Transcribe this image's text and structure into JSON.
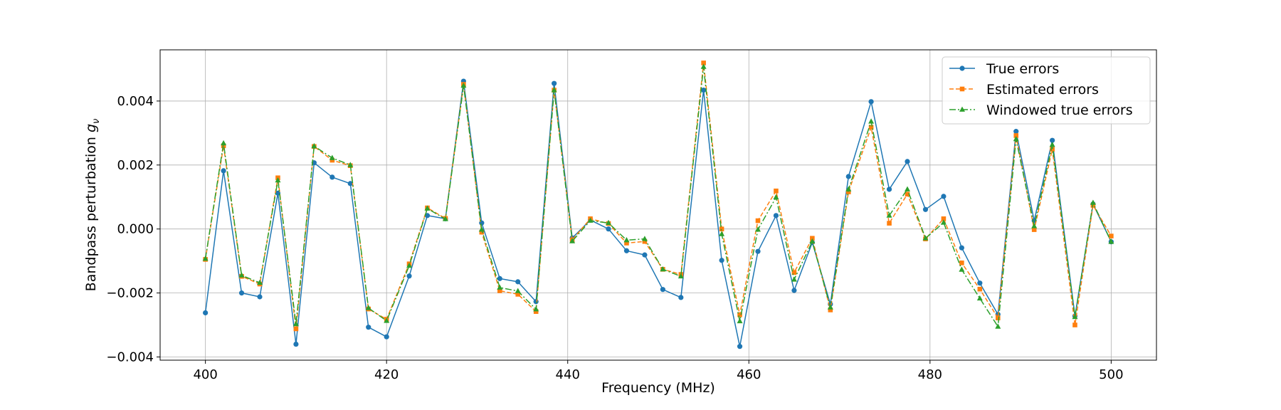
{
  "chart_data": {
    "type": "line",
    "title": "",
    "xlabel": "Frequency (MHz)",
    "ylabel_main": "Bandpass perturbation ",
    "ylabel_symbol": "g",
    "ylabel_sub": "ν",
    "xlim": [
      395,
      505
    ],
    "ylim": [
      -0.0041,
      0.0056
    ],
    "xticks": [
      400,
      420,
      440,
      460,
      480,
      500
    ],
    "yticks": [
      -0.004,
      -0.002,
      0.0,
      0.002,
      0.004
    ],
    "xtick_labels": [
      "400",
      "420",
      "440",
      "460",
      "480",
      "500"
    ],
    "ytick_labels": [
      "−0.004",
      "−0.002",
      "0.000",
      "0.002",
      "0.004"
    ],
    "grid": true,
    "legend_position": "upper right",
    "x": [
      400,
      402,
      404,
      406,
      408,
      410,
      412,
      414,
      416,
      418,
      420,
      422.5,
      424.5,
      426.5,
      428.5,
      430.5,
      432.5,
      434.5,
      436.5,
      438.5,
      440.5,
      442.5,
      444.5,
      446.5,
      448.5,
      450.5,
      452.5,
      455,
      457,
      459,
      461,
      463,
      465,
      467,
      469,
      471,
      473.5,
      475.5,
      477.5,
      479.5,
      481.5,
      483.5,
      485.5,
      487.5,
      489.5,
      491.5,
      493.5,
      496,
      498,
      500
    ],
    "series": [
      {
        "name": "True errors",
        "color": "#1f77b4",
        "linestyle": "solid",
        "marker": "circle",
        "values": [
          -0.00262,
          0.00182,
          -0.002,
          -0.00212,
          0.00112,
          -0.0036,
          0.00207,
          0.00162,
          0.00142,
          -0.00307,
          -0.00337,
          -0.00147,
          0.00042,
          0.00032,
          0.00462,
          0.00019,
          -0.00155,
          -0.00165,
          -0.00227,
          0.00455,
          -0.00028,
          0.00028,
          0.0,
          -0.00068,
          -0.00081,
          -0.00189,
          -0.00214,
          0.00434,
          -0.00098,
          -0.00367,
          -0.0007,
          0.00042,
          -0.00192,
          -0.00042,
          -0.00235,
          0.00164,
          0.00398,
          0.00124,
          0.00211,
          0.00061,
          0.00102,
          -0.00059,
          -0.00169,
          -0.00267,
          0.00305,
          0.00026,
          0.00277,
          -0.00272,
          0.00078,
          -0.0004
        ]
      },
      {
        "name": "Estimated errors",
        "color": "#ff7f0e",
        "linestyle": "dashed",
        "marker": "square",
        "values": [
          -0.00095,
          0.0026,
          -0.00148,
          -0.00172,
          0.0016,
          -0.00312,
          0.00258,
          0.00215,
          0.00198,
          -0.0025,
          -0.00282,
          -0.00109,
          0.00066,
          0.00033,
          0.00452,
          -0.0001,
          -0.00193,
          -0.00204,
          -0.00258,
          0.00434,
          -0.00034,
          0.00032,
          0.00017,
          -0.00044,
          -0.00039,
          -0.00126,
          -0.00142,
          0.00519,
          0.0,
          -0.00268,
          0.00026,
          0.00119,
          -0.00136,
          -0.00029,
          -0.00253,
          0.00116,
          0.00318,
          0.00018,
          0.00109,
          -0.00031,
          0.00032,
          -0.00106,
          -0.00188,
          -0.00278,
          0.00292,
          -2e-05,
          0.00249,
          -0.003,
          0.00074,
          -0.00022
        ]
      },
      {
        "name": "Windowed true errors",
        "color": "#2ca02c",
        "linestyle": "dashdot",
        "marker": "triangle",
        "values": [
          -0.00093,
          0.00268,
          -0.00145,
          -0.00168,
          0.00152,
          -0.00297,
          0.00259,
          0.00222,
          0.002,
          -0.00247,
          -0.00287,
          -0.00115,
          0.00064,
          0.00031,
          0.00448,
          -2e-05,
          -0.00183,
          -0.00194,
          -0.00251,
          0.00434,
          -0.00038,
          0.00026,
          0.00019,
          -0.00035,
          -0.00031,
          -0.00126,
          -0.00148,
          0.00507,
          -0.00016,
          -0.00288,
          -2e-05,
          0.00099,
          -0.00158,
          -0.00039,
          -0.00245,
          0.00124,
          0.00336,
          0.00042,
          0.00124,
          -0.00029,
          0.0002,
          -0.00127,
          -0.00217,
          -0.00305,
          0.00281,
          9e-05,
          0.00263,
          -0.00275,
          0.00082,
          -0.0004
        ]
      }
    ]
  }
}
